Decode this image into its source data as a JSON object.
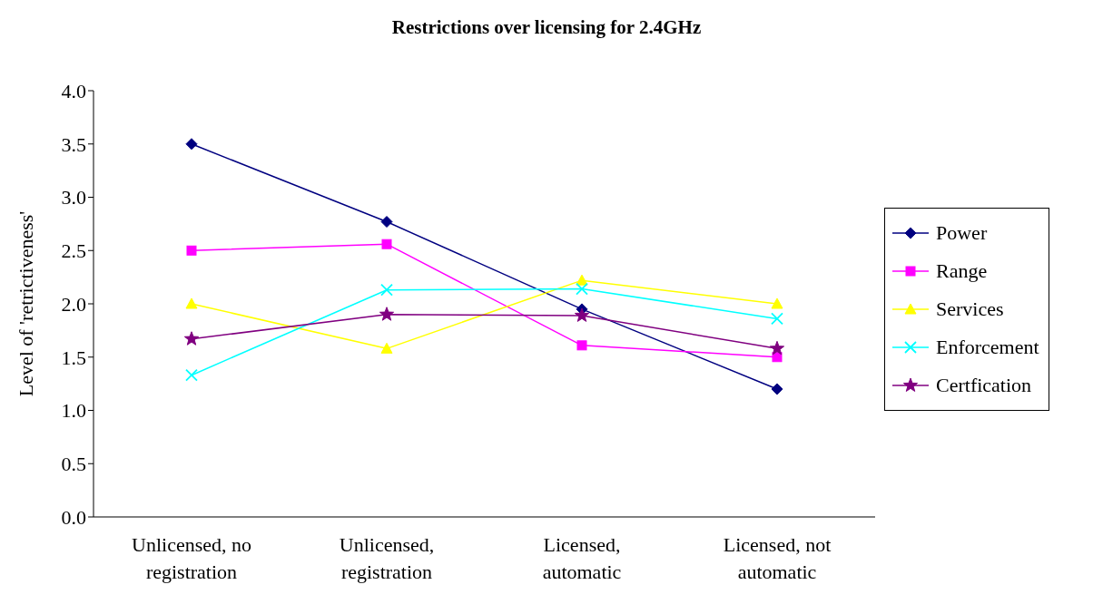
{
  "chart_data": {
    "type": "line",
    "title": "Restrictions over licensing for 2.4GHz",
    "ylabel": "Level of 'retrictiveness'",
    "categories": [
      "Unlicensed, no registration",
      "Unlicensed, registration",
      "Licensed, automatic",
      "Licensed, not automatic"
    ],
    "series": [
      {
        "name": "Power",
        "color": "#000080",
        "marker": "diamond",
        "values": [
          3.5,
          2.77,
          1.95,
          1.2
        ]
      },
      {
        "name": "Range",
        "color": "#ff00ff",
        "marker": "square",
        "values": [
          2.5,
          2.56,
          1.61,
          1.5
        ]
      },
      {
        "name": "Services",
        "color": "#ffff00",
        "marker": "triangle",
        "values": [
          2.0,
          1.58,
          2.22,
          2.0
        ]
      },
      {
        "name": "Enforcement",
        "color": "#00ffff",
        "marker": "cross",
        "values": [
          1.33,
          2.13,
          2.14,
          1.86
        ]
      },
      {
        "name": "Certfication",
        "color": "#800080",
        "marker": "star",
        "values": [
          1.67,
          1.9,
          1.89,
          1.58
        ]
      }
    ],
    "ylim": [
      0,
      4
    ],
    "yticks": [
      {
        "value": 0,
        "label": "0.0"
      },
      {
        "value": 0.5,
        "label": "0.5"
      },
      {
        "value": 1,
        "label": "1.0"
      },
      {
        "value": 1.5,
        "label": "1.5"
      },
      {
        "value": 2,
        "label": "2.0"
      },
      {
        "value": 2.5,
        "label": "2.5"
      },
      {
        "value": 3,
        "label": "3.0"
      },
      {
        "value": 3.5,
        "label": "3.5"
      },
      {
        "value": 4,
        "label": "4.0"
      }
    ],
    "grid": false,
    "legend": "right",
    "line_style": "solid"
  }
}
